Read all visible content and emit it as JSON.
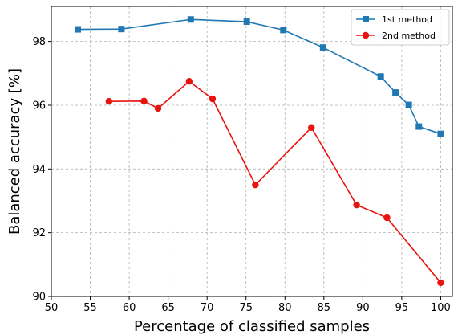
{
  "chart_data": {
    "type": "line",
    "title": "",
    "xlabel": "Percentage of classified samples",
    "ylabel": "Balanced accuracy [%]",
    "xlim": [
      50,
      101.5
    ],
    "ylim": [
      90,
      99.1
    ],
    "xticks": [
      50,
      55,
      60,
      65,
      70,
      75,
      80,
      85,
      90,
      95,
      100
    ],
    "yticks": [
      90,
      92,
      94,
      96,
      98
    ],
    "grid": true,
    "legend_position": "upper right",
    "series": [
      {
        "name": "1st method",
        "color": "#1f77b4",
        "marker": "square",
        "x": [
          53.4,
          59.0,
          67.9,
          75.1,
          79.8,
          84.9,
          92.3,
          94.2,
          95.9,
          97.2,
          100.0
        ],
        "y": [
          98.38,
          98.39,
          98.69,
          98.62,
          98.36,
          97.81,
          96.9,
          96.4,
          96.01,
          95.33,
          95.1
        ]
      },
      {
        "name": "2nd method",
        "color": "#e8120e",
        "marker": "circle",
        "x": [
          57.4,
          61.9,
          63.7,
          67.7,
          70.7,
          76.2,
          83.4,
          89.2,
          93.1,
          100.0
        ],
        "y": [
          96.12,
          96.13,
          95.9,
          96.75,
          96.2,
          93.5,
          95.3,
          92.87,
          92.47,
          90.43
        ]
      }
    ]
  }
}
